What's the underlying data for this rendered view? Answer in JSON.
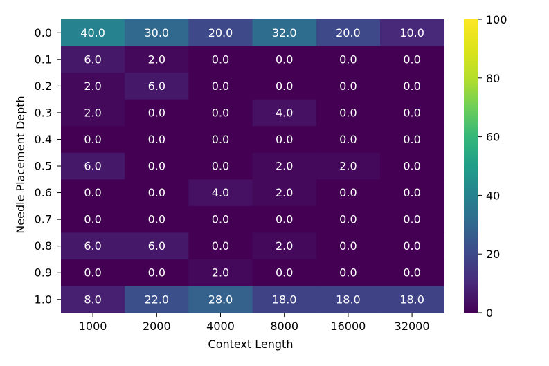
{
  "chart_data": {
    "type": "heatmap",
    "xlabel": "Context Length",
    "ylabel": "Needle Placement Depth",
    "x_categories": [
      "1000",
      "2000",
      "4000",
      "8000",
      "16000",
      "32000"
    ],
    "y_categories": [
      "0.0",
      "0.1",
      "0.2",
      "0.3",
      "0.4",
      "0.5",
      "0.6",
      "0.7",
      "0.8",
      "0.9",
      "1.0"
    ],
    "values": [
      [
        40.0,
        30.0,
        20.0,
        32.0,
        20.0,
        10.0
      ],
      [
        6.0,
        2.0,
        0.0,
        0.0,
        0.0,
        0.0
      ],
      [
        2.0,
        6.0,
        0.0,
        0.0,
        0.0,
        0.0
      ],
      [
        2.0,
        0.0,
        0.0,
        4.0,
        0.0,
        0.0
      ],
      [
        0.0,
        0.0,
        0.0,
        0.0,
        0.0,
        0.0
      ],
      [
        6.0,
        0.0,
        0.0,
        2.0,
        2.0,
        0.0
      ],
      [
        0.0,
        0.0,
        4.0,
        2.0,
        0.0,
        0.0
      ],
      [
        0.0,
        0.0,
        0.0,
        0.0,
        0.0,
        0.0
      ],
      [
        6.0,
        6.0,
        0.0,
        2.0,
        0.0,
        0.0
      ],
      [
        0.0,
        0.0,
        2.0,
        0.0,
        0.0,
        0.0
      ],
      [
        8.0,
        22.0,
        28.0,
        18.0,
        18.0,
        18.0
      ]
    ],
    "colorbar": {
      "colormap": "viridis",
      "range": [
        0,
        100
      ],
      "ticks": [
        "0",
        "20",
        "40",
        "60",
        "80",
        "100"
      ]
    },
    "grid": false,
    "legend": "colorbar-right"
  }
}
